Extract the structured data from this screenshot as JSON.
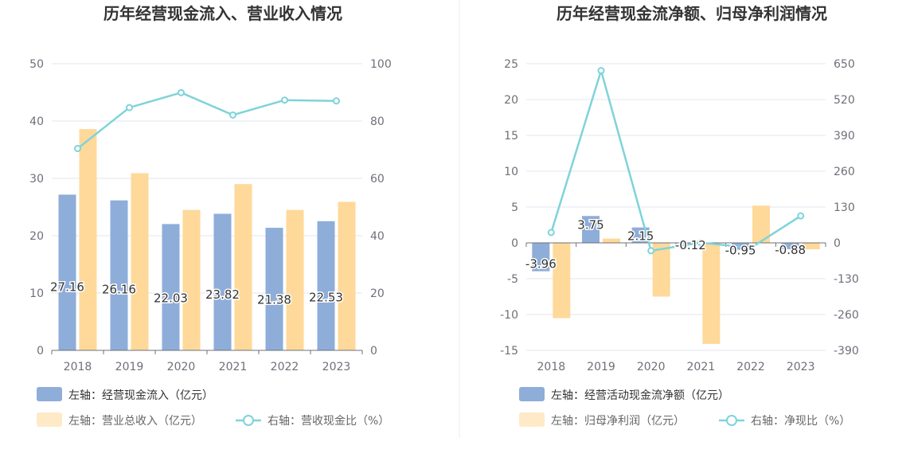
{
  "chart_data": [
    {
      "type": "bar",
      "title": "历年经营现金流入、营业收入情况",
      "categories": [
        "2018",
        "2019",
        "2020",
        "2021",
        "2022",
        "2023"
      ],
      "ylim_left": [
        0,
        50
      ],
      "yticks_left": [
        0,
        10,
        20,
        30,
        40,
        50
      ],
      "ylim_right": [
        0,
        100
      ],
      "yticks_right": [
        0,
        20,
        40,
        60,
        80,
        100
      ],
      "grid": true,
      "legend_position": "bottom-left",
      "series": [
        {
          "name": "左轴：经营现金流入（亿元）",
          "kind": "bar",
          "axis": "left",
          "color": "#8eadd9",
          "values": [
            27.16,
            26.16,
            22.03,
            23.82,
            21.38,
            22.53
          ],
          "labels": [
            "27.16",
            "26.16",
            "22.03",
            "23.82",
            "21.38",
            "22.53"
          ]
        },
        {
          "name": "左轴：营业总收入（亿元）",
          "kind": "bar",
          "axis": "left",
          "color": "#ffd99a",
          "values": [
            38.6,
            30.9,
            24.5,
            29.0,
            24.5,
            25.9
          ]
        },
        {
          "name": "右轴：营收现金比（%）",
          "kind": "line",
          "axis": "right",
          "color": "#7fd3da",
          "values": [
            70.4,
            84.7,
            89.9,
            82.1,
            87.3,
            87.0
          ]
        }
      ]
    },
    {
      "type": "bar",
      "title": "历年经营现金流净额、归母净利润情况",
      "categories": [
        "2018",
        "2019",
        "2020",
        "2021",
        "2022",
        "2023"
      ],
      "ylim_left": [
        -15,
        25
      ],
      "yticks_left": [
        -15,
        -10,
        -5,
        0,
        5,
        10,
        15,
        20,
        25
      ],
      "ylim_right": [
        -390,
        650
      ],
      "yticks_right": [
        -390,
        -260,
        -130,
        0,
        130,
        260,
        390,
        520,
        650
      ],
      "grid": true,
      "legend_position": "bottom-left",
      "series": [
        {
          "name": "左轴：经营活动现金流净额（亿元）",
          "kind": "bar",
          "axis": "left",
          "color": "#8eadd9",
          "values": [
            -3.96,
            3.75,
            2.15,
            -0.12,
            -0.95,
            -0.88
          ],
          "labels": [
            "-3.96",
            "3.75",
            "2.15",
            "-0.12",
            "-0.95",
            "-0.88"
          ]
        },
        {
          "name": "左轴：归母净利润（亿元）",
          "kind": "bar",
          "axis": "left",
          "color": "#ffd99a",
          "values": [
            -10.5,
            0.6,
            -7.5,
            -14.1,
            5.2,
            -0.9
          ]
        },
        {
          "name": "右轴：净现比（%）",
          "kind": "line",
          "axis": "right",
          "color": "#7fd3da",
          "values": [
            37.7,
            625,
            -28.7,
            0.9,
            -18.3,
            97.8
          ]
        }
      ]
    }
  ]
}
